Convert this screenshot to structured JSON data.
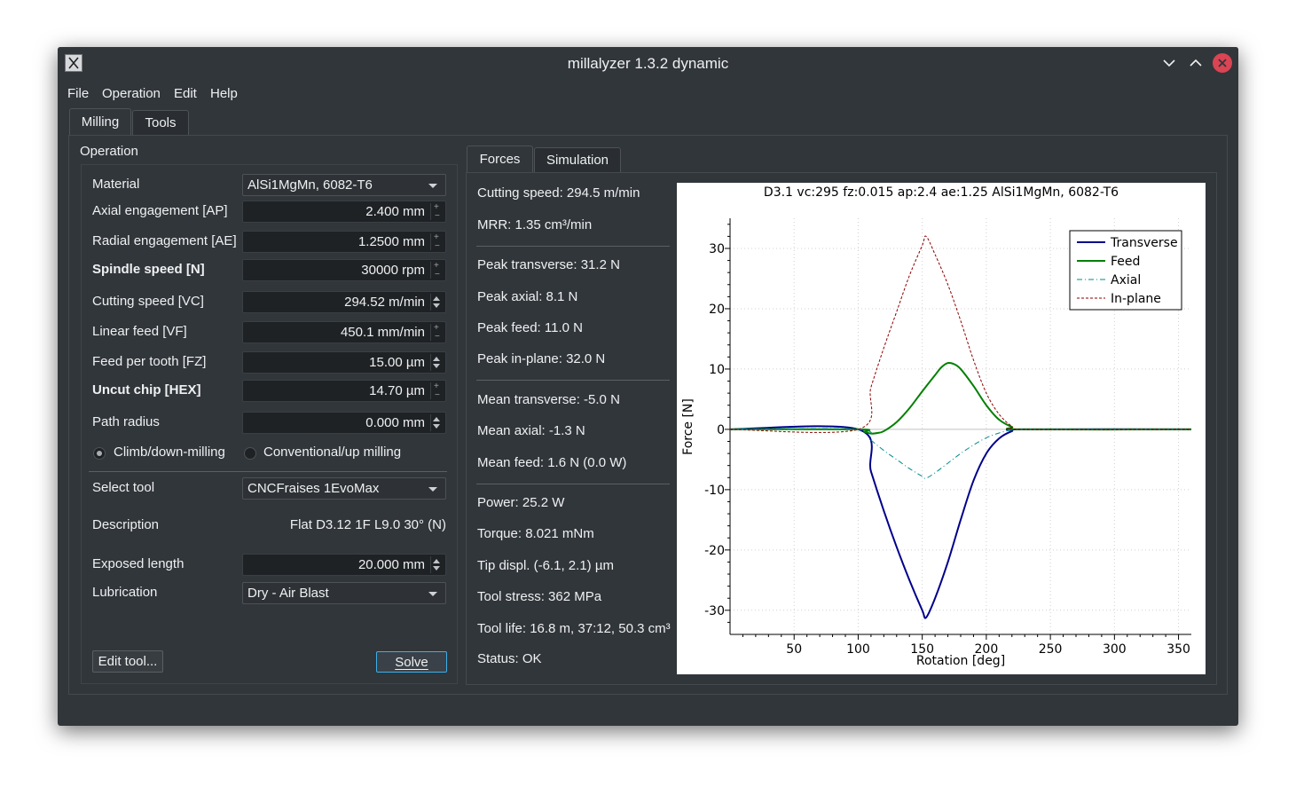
{
  "window": {
    "title": "millalyzer 1.3.2 dynamic",
    "controls": [
      "chevron-down-icon",
      "chevron-up-icon",
      "close-icon"
    ]
  },
  "menu": [
    "File",
    "Operation",
    "Edit",
    "Help"
  ],
  "main_tabs": [
    "Milling",
    "Tools"
  ],
  "operation": {
    "group_title": "Operation",
    "material_label": "Material",
    "material_value": "AlSi1MgMn, 6082-T6",
    "fields": [
      {
        "label": "Axial engagement [AP]",
        "value": "2.400 mm",
        "bold": false
      },
      {
        "label": "Radial engagement [AE]",
        "value": "1.2500 mm",
        "bold": false
      },
      {
        "label": "Spindle speed [N]",
        "value": "30000 rpm",
        "bold": true
      },
      {
        "label": "Cutting speed [VC]",
        "value": "294.52 m/min",
        "bold": false
      },
      {
        "label": "Linear feed [VF]",
        "value": "450.1 mm/min",
        "bold": false
      },
      {
        "label": "Feed per tooth [FZ]",
        "value": "15.00 µm",
        "bold": false
      },
      {
        "label": "Uncut chip [HEX]",
        "value": "14.70 µm",
        "bold": true
      },
      {
        "label": "Path radius",
        "value": "0.000 mm",
        "bold": false
      }
    ],
    "radio_climb": "Climb/down-milling",
    "radio_conventional": "Conventional/up milling",
    "select_tool_label": "Select tool",
    "select_tool_value": "CNCFraises 1EvoMax",
    "description_label": "Description",
    "description_value": "Flat D3.12 1F L9.0 30° (N)",
    "exposed_length_label": "Exposed length",
    "exposed_length_value": "20.000 mm",
    "lubrication_label": "Lubrication",
    "lubrication_value": "Dry - Air Blast",
    "edit_tool_button": "Edit tool...",
    "solve_button": "Solve"
  },
  "result_tabs": [
    "Forces",
    "Simulation"
  ],
  "results": {
    "group1": [
      "Cutting speed: 294.5 m/min",
      "MRR: 1.35 cm³/min"
    ],
    "group2": [
      "Peak transverse: 31.2 N",
      "Peak axial: 8.1 N",
      "Peak feed: 11.0 N",
      "Peak in-plane: 32.0 N"
    ],
    "group3": [
      "Mean transverse: -5.0 N",
      "Mean axial: -1.3 N",
      "Mean feed: 1.6 N (0.0 W)"
    ],
    "group4": [
      "Power: 25.2 W",
      "Torque: 8.021 mNm",
      "Tip displ. (-6.1, 2.1) µm",
      "Tool stress: 362 MPa",
      "Tool life: 16.8 m, 37:12, 50.3 cm³",
      "Status: OK"
    ]
  },
  "chart_data": {
    "type": "line",
    "title": "D3.1 vc:295 fz:0.015 ap:2.4 ae:1.25 AlSi1MgMn, 6082-T6",
    "xlabel": "Rotation [deg]",
    "ylabel": "Force [N]",
    "xlim": [
      0,
      360
    ],
    "ylim": [
      -34,
      35
    ],
    "xticks": [
      50,
      100,
      150,
      200,
      250,
      300,
      350
    ],
    "yticks": [
      30,
      20,
      10,
      0,
      -10,
      -20,
      -30
    ],
    "grid": true,
    "legend_position": "top-right",
    "series": [
      {
        "name": "Transverse",
        "color": "#00008b",
        "style": "solid",
        "x": [
          0,
          100,
          110,
          120,
          130,
          140,
          150,
          153,
          160,
          170,
          180,
          190,
          200,
          210,
          220,
          228,
          360
        ],
        "y": [
          0,
          0,
          -7,
          -13.5,
          -19.5,
          -25,
          -30,
          -31.2,
          -28,
          -22,
          -15,
          -8.5,
          -4,
          -1.5,
          -0.3,
          0,
          0
        ]
      },
      {
        "name": "Feed",
        "color": "#008000",
        "style": "solid",
        "x": [
          0,
          100,
          105,
          110,
          115,
          120,
          130,
          140,
          150,
          160,
          165,
          170,
          175,
          180,
          190,
          200,
          210,
          220,
          228,
          360
        ],
        "y": [
          0,
          0,
          -0.4,
          -0.7,
          -0.6,
          -0.3,
          1.2,
          3.5,
          6.3,
          9,
          10.3,
          11,
          10.8,
          10,
          7.2,
          4,
          1.6,
          0.4,
          0,
          0
        ]
      },
      {
        "name": "Axial",
        "color": "#008b8b",
        "style": "dashdot",
        "x": [
          0,
          100,
          110,
          120,
          130,
          140,
          150,
          153,
          160,
          170,
          180,
          190,
          200,
          210,
          220,
          228,
          360
        ],
        "y": [
          0,
          0,
          -1.8,
          -3.5,
          -5,
          -6.5,
          -7.8,
          -8.1,
          -7.2,
          -5.6,
          -4,
          -2.6,
          -1.4,
          -0.6,
          -0.1,
          0,
          0
        ]
      },
      {
        "name": "In-plane",
        "color": "#8b0000",
        "style": "dashed",
        "x": [
          0,
          100,
          110,
          120,
          130,
          140,
          150,
          153,
          160,
          170,
          180,
          190,
          200,
          210,
          220,
          228,
          360
        ],
        "y": [
          0,
          0,
          7,
          13.5,
          19.5,
          25.5,
          30.5,
          32,
          29,
          24,
          18,
          11.5,
          6,
          2.5,
          0.5,
          0,
          0
        ]
      }
    ]
  }
}
